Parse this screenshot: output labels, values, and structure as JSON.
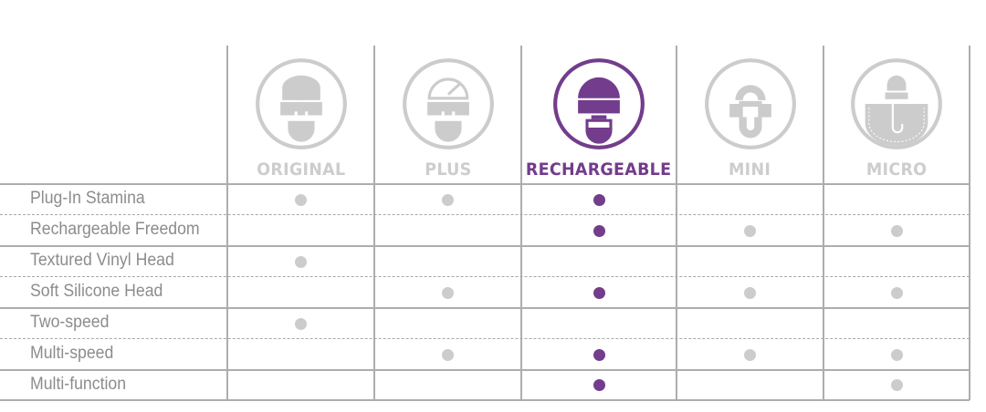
{
  "colors": {
    "accent": "#733c8c",
    "inactive": "#cccccc",
    "label": "#8c8c8c",
    "grid": "#adadad"
  },
  "products": [
    {
      "name": "ORIGINAL",
      "icon": "plug-wand-icon",
      "active": false
    },
    {
      "name": "PLUS",
      "icon": "plug-wand-gauge-icon",
      "active": false
    },
    {
      "name": "RECHARGEABLE",
      "icon": "rechargeable-wand-icon",
      "active": true
    },
    {
      "name": "MINI",
      "icon": "mini-wand-icon",
      "active": false
    },
    {
      "name": "MICRO",
      "icon": "micro-wand-pocket-icon",
      "active": false
    }
  ],
  "features": [
    {
      "label": "Plug-In Stamina",
      "has": [
        true,
        true,
        true,
        false,
        false
      ]
    },
    {
      "label": "Rechargeable Freedom",
      "has": [
        false,
        false,
        true,
        true,
        true
      ]
    },
    {
      "label": "Textured Vinyl Head",
      "has": [
        true,
        false,
        false,
        false,
        false
      ]
    },
    {
      "label": "Soft Silicone Head",
      "has": [
        false,
        true,
        true,
        true,
        true
      ]
    },
    {
      "label": "Two-speed",
      "has": [
        true,
        false,
        false,
        false,
        false
      ]
    },
    {
      "label": "Multi-speed",
      "has": [
        false,
        true,
        true,
        true,
        true
      ]
    },
    {
      "label": "Multi-function",
      "has": [
        false,
        false,
        true,
        false,
        true
      ]
    }
  ]
}
